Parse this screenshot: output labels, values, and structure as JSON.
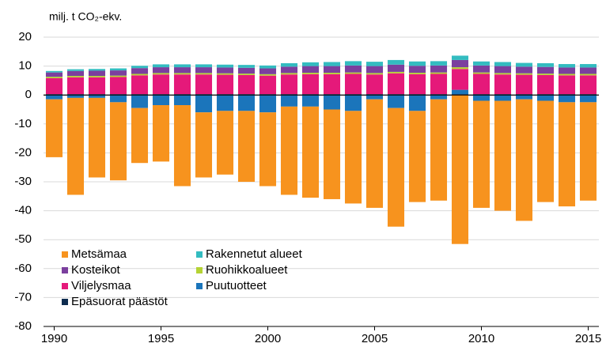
{
  "chart_data": {
    "type": "stacked_bar",
    "y_axis_label": "milj. t CO₂-ekv.",
    "x": [
      1990,
      1991,
      1992,
      1993,
      1994,
      1995,
      1996,
      1997,
      1998,
      1999,
      2000,
      2001,
      2002,
      2003,
      2004,
      2005,
      2006,
      2007,
      2008,
      2009,
      2010,
      2011,
      2012,
      2013,
      2014,
      2015
    ],
    "xlim": [
      1989.5,
      2015.5
    ],
    "xticks": [
      1990,
      1995,
      2000,
      2005,
      2010,
      2015
    ],
    "ylim": [
      -80,
      20
    ],
    "yticks": [
      -80,
      -70,
      -60,
      -50,
      -40,
      -30,
      -20,
      -10,
      0,
      10,
      20
    ],
    "grid": true,
    "legend": "lower left",
    "series": [
      {
        "name": "Metsämaa",
        "color": "#f7931e",
        "values": [
          -20,
          -33.5,
          -27.5,
          -27,
          -19,
          -19.5,
          -28,
          -22.5,
          -22,
          -24.5,
          -25.5,
          -30.5,
          -31.5,
          -31,
          -32,
          -37.5,
          -41,
          -31.5,
          -35,
          -51.5,
          -37,
          -38,
          -42,
          -35,
          -36,
          -34
        ]
      },
      {
        "name": "Rakennetut alueet",
        "color": "#33bcc0",
        "values": [
          0.5,
          0.6,
          0.6,
          0.7,
          0.8,
          1,
          1,
          1,
          1,
          1,
          1,
          1.2,
          1.3,
          1.4,
          1.5,
          1.5,
          1.6,
          1.5,
          1.5,
          1.5,
          1.4,
          1.4,
          1.3,
          1.3,
          1.2,
          1.2
        ]
      },
      {
        "name": "Kosteikot",
        "color": "#7b3f9e",
        "values": [
          1.5,
          1.7,
          1.8,
          1.8,
          2,
          2,
          2,
          2,
          2,
          2,
          2,
          2.2,
          2.3,
          2.3,
          2.4,
          2.4,
          2.5,
          2.4,
          2.4,
          2.5,
          2.4,
          2.4,
          2.3,
          2.3,
          2.2,
          2.2
        ]
      },
      {
        "name": "Ruohikkoalueet",
        "color": "#b5d334",
        "values": [
          0.5,
          0.5,
          0.5,
          0.5,
          0.5,
          0.5,
          0.5,
          0.5,
          0.5,
          0.5,
          0.5,
          0.5,
          0.5,
          0.5,
          0.5,
          0.5,
          0.5,
          0.5,
          0.5,
          0.6,
          0.5,
          0.5,
          0.5,
          0.5,
          0.5,
          0.5
        ]
      },
      {
        "name": "Viljelysmaa",
        "color": "#e5197a",
        "values": [
          5.5,
          5.8,
          5.8,
          5.9,
          6.5,
          6.8,
          6.8,
          6.8,
          6.7,
          6.6,
          6.4,
          6.8,
          6.9,
          6.9,
          7,
          6.8,
          7.2,
          6.9,
          7,
          7.2,
          7,
          6.8,
          6.7,
          6.6,
          6.5,
          6.5
        ]
      },
      {
        "name": "Puutuotteet",
        "color": "#1b75bb",
        "values": [
          -1.5,
          -1,
          -1,
          -2.5,
          -4.5,
          -3.5,
          -3.5,
          -6,
          -5.5,
          -5.5,
          -6,
          -4,
          -4,
          -5,
          -5.5,
          -1.5,
          -4.5,
          -5.5,
          -1.5,
          1.5,
          -2,
          -2,
          -1.5,
          -2,
          -2.5,
          -2.5
        ]
      },
      {
        "name": "Epäsuorat päästöt",
        "color": "#0d2c4f",
        "values": [
          0.3,
          0.3,
          0.3,
          0.3,
          0.3,
          0.3,
          0.3,
          0.3,
          0.3,
          0.3,
          0.3,
          0.3,
          0.3,
          0.3,
          0.3,
          0.3,
          0.3,
          0.3,
          0.3,
          0.3,
          0.3,
          0.3,
          0.3,
          0.3,
          0.3,
          0.3
        ]
      }
    ]
  }
}
